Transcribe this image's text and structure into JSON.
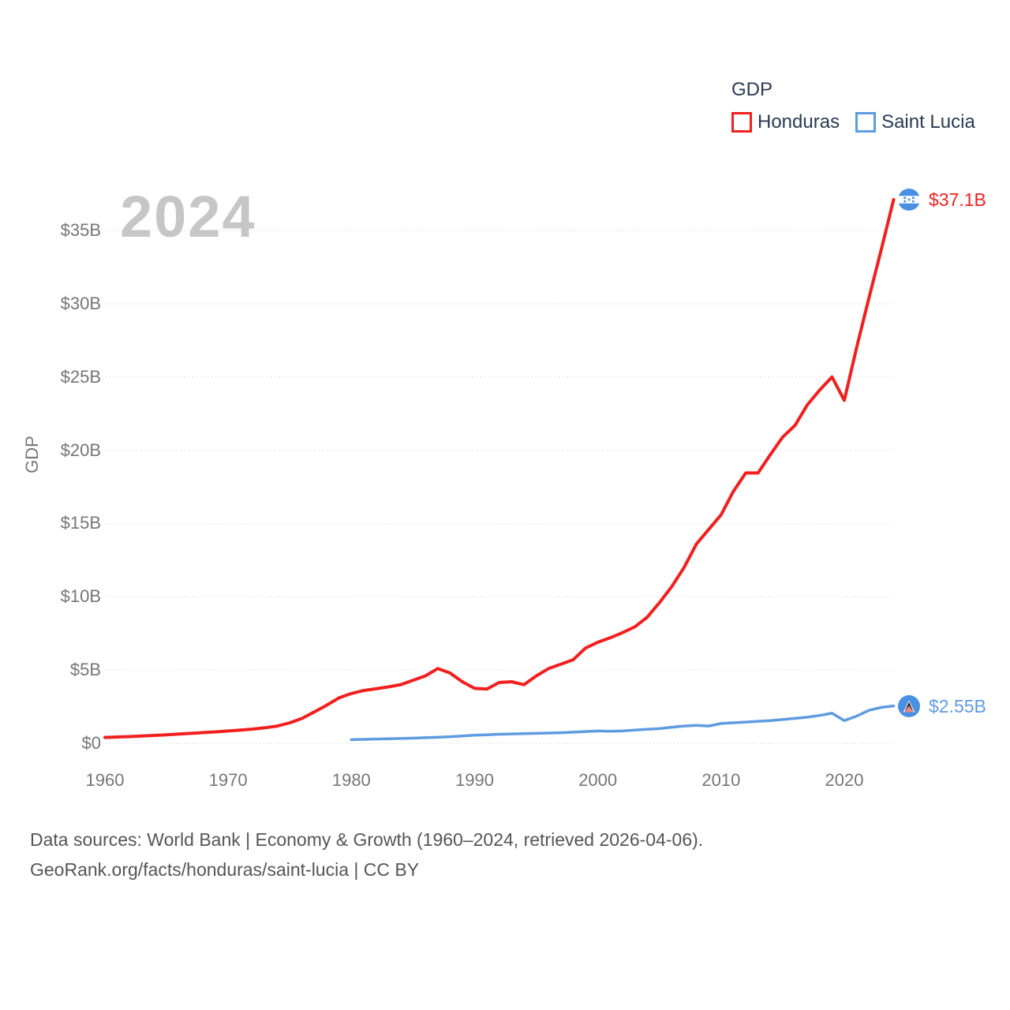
{
  "watermark_year": "2024",
  "legend": {
    "title": "GDP",
    "items": [
      {
        "id": "honduras",
        "label": "Honduras",
        "color": "#f21f1f"
      },
      {
        "id": "saint-lucia",
        "label": "Saint Lucia",
        "color": "#5f9be1"
      }
    ]
  },
  "y_axis": {
    "label": "GDP",
    "ticks": [
      "$0",
      "$5B",
      "$10B",
      "$15B",
      "$20B",
      "$25B",
      "$30B",
      "$35B"
    ]
  },
  "x_axis": {
    "ticks": [
      "1960",
      "1970",
      "1980",
      "1990",
      "2000",
      "2010",
      "2020"
    ]
  },
  "end_labels": {
    "honduras": "$37.1B",
    "saint_lucia": "$2.55B"
  },
  "icons": {
    "honduras_marker": "honduras-flag-icon",
    "saint_lucia_marker": "saint-lucia-flag-icon"
  },
  "footer": {
    "line1": "Data sources: World Bank | Economy & Growth (1960–2024, retrieved 2026-04-06).",
    "line2": "GeoRank.org/facts/honduras/saint-lucia | CC BY"
  },
  "colors": {
    "honduras": "#f21f1f",
    "saint_lucia": "#5f9be1",
    "legend_text": "#2b3a52",
    "axis_text": "#767676",
    "watermark": "#c6c6c6",
    "gridline": "#e9e9e9",
    "footer_text": "#555555",
    "flag_circle_blue": "#4a90e2"
  },
  "chart_data": {
    "type": "line",
    "title": "GDP",
    "ylabel": "GDP",
    "x_range": [
      1960,
      2024
    ],
    "y_range": [
      0,
      37.5
    ],
    "y_ticks": [
      0,
      5,
      10,
      15,
      20,
      25,
      30,
      35
    ],
    "x_ticks": [
      1960,
      1970,
      1980,
      1990,
      2000,
      2010,
      2020
    ],
    "grid": "horizontal-dotted",
    "legend_position": "top-right",
    "watermark": "2024",
    "units": "current US$ billions",
    "series": [
      {
        "id": "honduras",
        "name": "Honduras",
        "color": "#f21f1f",
        "start_year": 1960,
        "end_year": 2024,
        "end_value_label": "$37.1B",
        "values": [
          0.4,
          0.43,
          0.46,
          0.5,
          0.54,
          0.58,
          0.63,
          0.68,
          0.73,
          0.78,
          0.84,
          0.9,
          0.97,
          1.06,
          1.18,
          1.4,
          1.7,
          2.15,
          2.6,
          3.1,
          3.4,
          3.6,
          3.72,
          3.85,
          4.0,
          4.3,
          4.6,
          5.1,
          4.8,
          4.2,
          3.75,
          3.7,
          4.15,
          4.2,
          4.0,
          4.6,
          5.1,
          5.4,
          5.7,
          6.5,
          6.9,
          7.2,
          7.55,
          7.95,
          8.6,
          9.6,
          10.7,
          12.0,
          13.6,
          14.6,
          15.6,
          17.2,
          18.45,
          18.45,
          19.7,
          20.9,
          21.7,
          23.1,
          24.1,
          25.0,
          23.4,
          27.0,
          30.4,
          33.7,
          37.1
        ]
      },
      {
        "id": "saint-lucia",
        "name": "Saint Lucia",
        "color": "#5f9be1",
        "start_year": 1980,
        "end_year": 2024,
        "end_value_label": "$2.55B",
        "values": [
          0.25,
          0.27,
          0.29,
          0.31,
          0.33,
          0.35,
          0.38,
          0.41,
          0.45,
          0.5,
          0.55,
          0.58,
          0.62,
          0.64,
          0.66,
          0.68,
          0.7,
          0.72,
          0.76,
          0.8,
          0.84,
          0.82,
          0.84,
          0.9,
          0.96,
          1.0,
          1.1,
          1.18,
          1.22,
          1.18,
          1.35,
          1.4,
          1.45,
          1.5,
          1.55,
          1.62,
          1.7,
          1.78,
          1.9,
          2.05,
          1.55,
          1.85,
          2.25,
          2.45,
          2.55
        ]
      }
    ]
  }
}
